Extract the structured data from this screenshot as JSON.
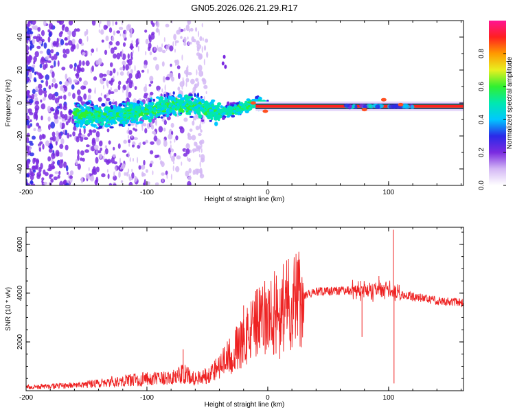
{
  "figure_title": "GN05.2026.026.21.29.R17",
  "colors": {
    "snr_line": "#ee2222",
    "ridge_line": "#222222",
    "background": "#ffffff"
  },
  "chart_data": [
    {
      "id": "spectrogram",
      "type": "heatmap",
      "title": "",
      "xlabel": "Height of straight line (km)",
      "ylabel": "Frequency (Hz)",
      "xlim": [
        -200,
        162
      ],
      "ylim": [
        -50,
        50
      ],
      "x_ticks": [
        -200,
        -100,
        0,
        100
      ],
      "x_tick_labels": [
        "-200",
        "-100",
        "0",
        "100"
      ],
      "y_ticks": [
        -40,
        -20,
        0,
        20,
        40
      ],
      "y_tick_labels": [
        "-40",
        "-20",
        "0",
        "20",
        "40"
      ],
      "colorbar": {
        "label": "Normalized spectral amplitude",
        "range": [
          0,
          1
        ],
        "ticks": [
          0.0,
          0.2,
          0.4,
          0.6,
          0.8
        ],
        "tick_labels": [
          "0.0",
          "0.2",
          "0.4",
          "0.6",
          "0.8"
        ],
        "colormap": [
          "#ffffff",
          "#d4b8f5",
          "#7b2be0",
          "#2a2ae8",
          "#00c8ff",
          "#00e8b0",
          "#30f030",
          "#e8f020",
          "#ff9a00",
          "#ff2020",
          "#ff1493"
        ]
      },
      "ridge": {
        "description": "carrier frequency track",
        "points": [
          [
            -160,
            -7
          ],
          [
            -140,
            -8
          ],
          [
            -120,
            -7
          ],
          [
            -100,
            -5
          ],
          [
            -80,
            -1
          ],
          [
            -60,
            -2
          ],
          [
            -40,
            -6
          ],
          [
            -20,
            -3
          ],
          [
            -10,
            0
          ],
          [
            0,
            -2
          ],
          [
            20,
            -2
          ],
          [
            60,
            -2
          ],
          [
            100,
            -2
          ],
          [
            162,
            -2
          ]
        ]
      }
    },
    {
      "id": "snr",
      "type": "line",
      "title": "",
      "xlabel": "Height of straight line (km)",
      "ylabel": "SNR (10 * v/v)",
      "xlim": [
        -200,
        162
      ],
      "ylim": [
        0,
        6700
      ],
      "x_ticks": [
        -200,
        -100,
        0,
        100
      ],
      "x_tick_labels": [
        "-200",
        "-100",
        "0",
        "100"
      ],
      "y_ticks": [
        2000,
        4000,
        6000
      ],
      "y_tick_labels": [
        "2000",
        "4000",
        "6000"
      ],
      "series": [
        {
          "name": "SNR",
          "envelope": [
            [
              -200,
              150
            ],
            [
              -180,
              180
            ],
            [
              -160,
              220
            ],
            [
              -140,
              300
            ],
            [
              -120,
              420
            ],
            [
              -100,
              480
            ],
            [
              -80,
              500
            ],
            [
              -70,
              700
            ],
            [
              -60,
              500
            ],
            [
              -50,
              650
            ],
            [
              -40,
              1000
            ],
            [
              -30,
              1500
            ],
            [
              -20,
              2000
            ],
            [
              -10,
              2700
            ],
            [
              0,
              3000
            ],
            [
              10,
              3400
            ],
            [
              20,
              3700
            ],
            [
              30,
              3900
            ],
            [
              40,
              4050
            ],
            [
              60,
              4100
            ],
            [
              80,
              4100
            ],
            [
              90,
              4100
            ],
            [
              100,
              4200
            ],
            [
              110,
              3950
            ],
            [
              120,
              3850
            ],
            [
              140,
              3700
            ],
            [
              162,
              3600
            ]
          ],
          "spikes": [
            [
              -70,
              1700
            ],
            [
              -20,
              3500
            ],
            [
              -10,
              3900
            ],
            [
              7,
              4400
            ],
            [
              10,
              1300
            ],
            [
              77,
              4500
            ],
            [
              78,
              2200
            ],
            [
              85,
              4300
            ],
            [
              92,
              4700
            ],
            [
              104,
              6600
            ],
            [
              104.5,
              300
            ]
          ]
        }
      ]
    }
  ]
}
